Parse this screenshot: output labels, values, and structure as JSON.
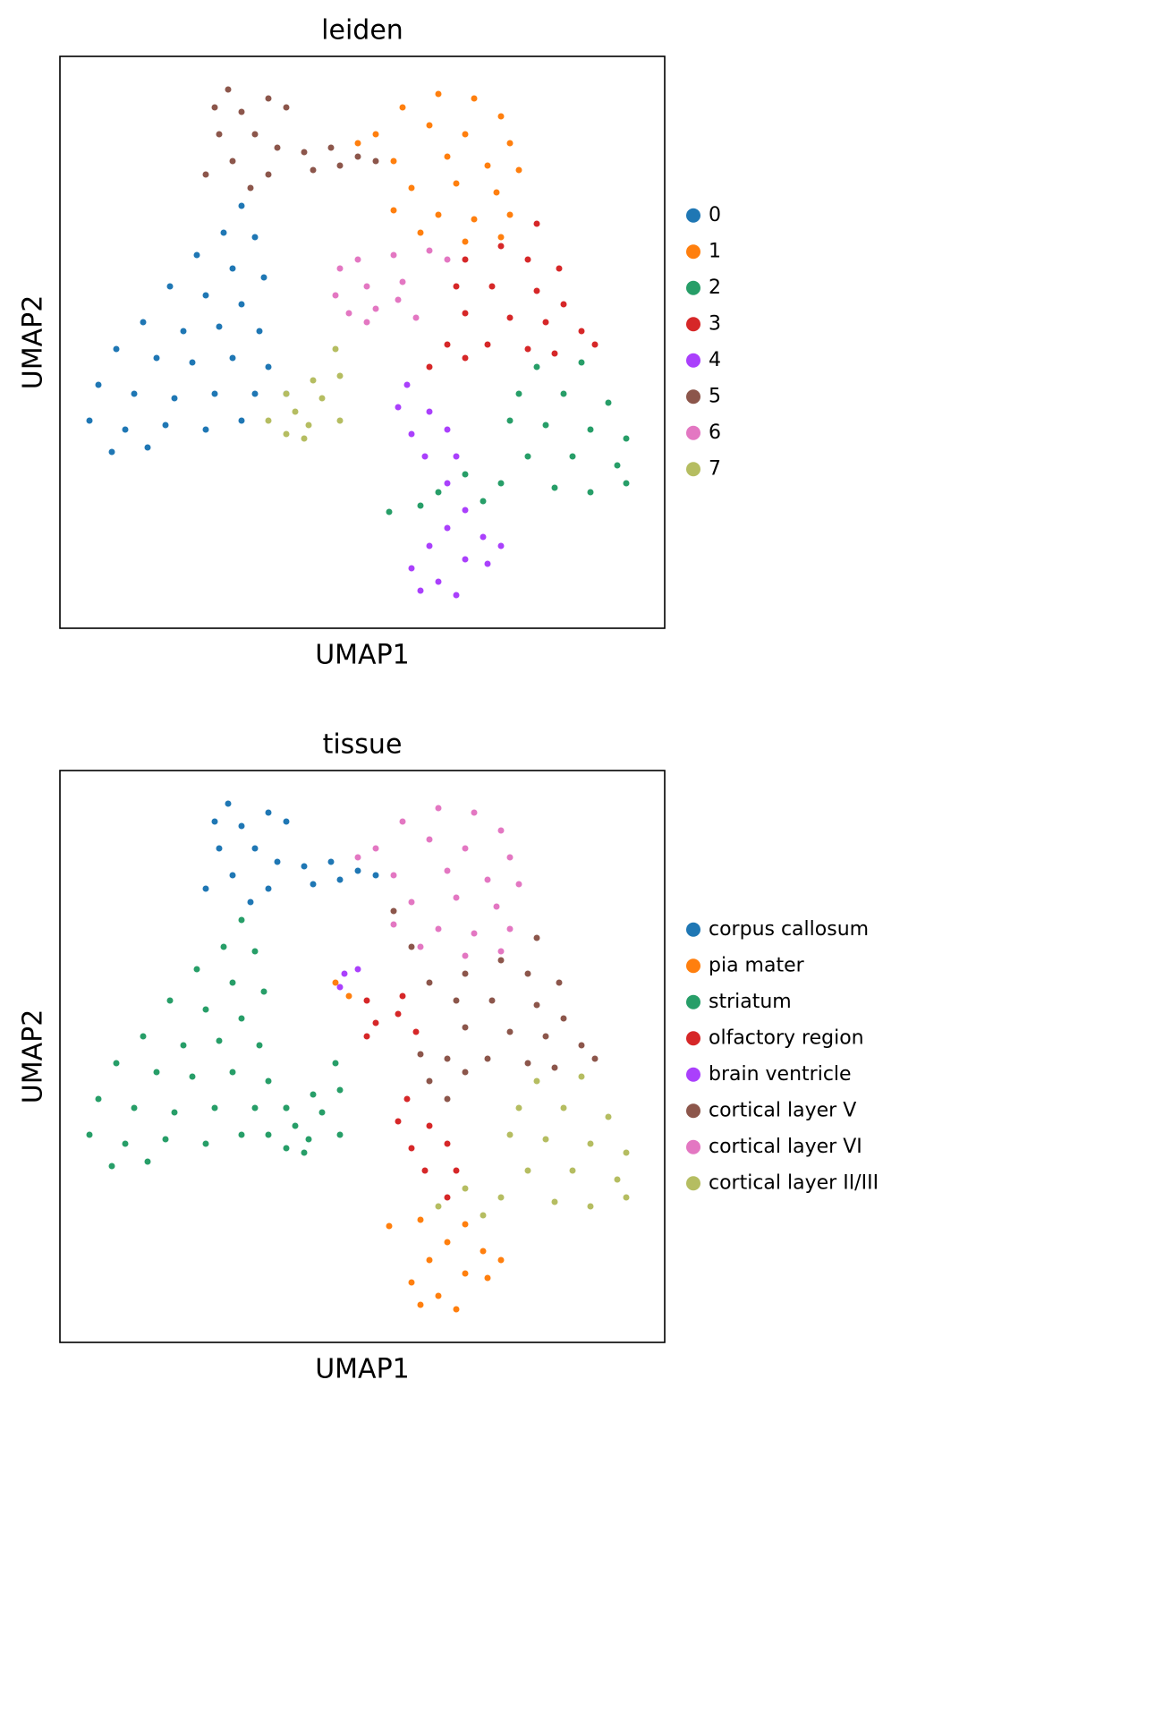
{
  "chart_data": [
    {
      "type": "scatter",
      "title": "leiden",
      "xlabel": "UMAP1",
      "ylabel": "UMAP2",
      "xlim": [
        0,
        13.52
      ],
      "ylim": [
        0,
        12.78
      ],
      "legend": "right",
      "series": [
        {
          "name": "0",
          "color": "#1f77b4",
          "x": [
            4.06,
            3.66,
            4.36,
            3.06,
            3.86,
            4.56,
            2.46,
            3.26,
            4.06,
            1.86,
            2.76,
            3.56,
            4.46,
            1.26,
            2.16,
            2.96,
            3.86,
            4.66,
            0.86,
            1.66,
            2.56,
            3.46,
            4.36,
            5.06,
            0.66,
            1.46,
            2.36,
            3.26,
            4.06,
            1.16,
            1.96
          ],
          "values": [
            9.44,
            8.84,
            8.74,
            8.34,
            8.04,
            7.84,
            7.64,
            7.44,
            7.24,
            6.84,
            6.64,
            6.74,
            6.64,
            6.24,
            6.04,
            5.94,
            6.04,
            5.84,
            5.44,
            5.24,
            5.14,
            5.24,
            5.24,
            5.24,
            4.64,
            4.44,
            4.54,
            4.44,
            4.64,
            3.94,
            4.04
          ]
        },
        {
          "name": "1",
          "color": "#ff7f0e",
          "x": [
            8.46,
            9.26,
            7.66,
            9.86,
            7.06,
            8.26,
            9.06,
            10.06,
            7.46,
            8.66,
            9.56,
            10.26,
            7.86,
            8.86,
            9.76,
            7.46,
            8.46,
            9.26,
            10.06,
            9.06,
            9.86,
            6.66,
            8.06
          ],
          "values": [
            11.94,
            11.84,
            11.64,
            11.44,
            11.04,
            11.24,
            11.04,
            10.84,
            10.44,
            10.54,
            10.34,
            10.24,
            9.84,
            9.94,
            9.74,
            9.34,
            9.24,
            9.14,
            9.24,
            8.64,
            8.74,
            10.84,
            8.84
          ]
        },
        {
          "name": "2",
          "color": "#279e68",
          "x": [
            10.66,
            11.66,
            10.26,
            11.26,
            12.26,
            10.06,
            10.86,
            11.86,
            12.66,
            10.46,
            11.46,
            12.46,
            12.66,
            9.86,
            11.06,
            11.86,
            9.06,
            8.46,
            9.46,
            8.06,
            7.36
          ],
          "values": [
            5.84,
            5.94,
            5.24,
            5.24,
            5.04,
            4.64,
            4.54,
            4.44,
            4.24,
            3.84,
            3.84,
            3.64,
            3.24,
            3.24,
            3.14,
            3.04,
            3.44,
            3.04,
            2.84,
            2.74,
            2.6
          ]
        },
        {
          "name": "3",
          "color": "#d62728",
          "x": [
            10.66,
            9.86,
            9.06,
            10.46,
            11.16,
            8.86,
            9.66,
            10.66,
            11.26,
            9.06,
            10.06,
            10.86,
            11.66,
            8.66,
            9.56,
            10.46,
            11.96,
            8.26,
            9.06,
            11.06
          ],
          "values": [
            9.04,
            8.54,
            8.24,
            8.24,
            8.04,
            7.64,
            7.64,
            7.54,
            7.24,
            7.04,
            6.94,
            6.84,
            6.64,
            6.34,
            6.34,
            6.24,
            6.34,
            5.84,
            6.04,
            6.14
          ]
        },
        {
          "name": "4",
          "color": "#aa40fc",
          "x": [
            7.76,
            7.56,
            8.26,
            7.86,
            8.66,
            8.16,
            8.86,
            8.66,
            9.06,
            8.66,
            9.46,
            9.86,
            8.26,
            9.06,
            7.86,
            9.56,
            8.46,
            8.86,
            8.06
          ],
          "values": [
            5.44,
            4.94,
            4.84,
            4.34,
            4.44,
            3.84,
            3.84,
            3.24,
            2.64,
            2.24,
            2.04,
            1.84,
            1.84,
            1.54,
            1.34,
            1.44,
            1.04,
            0.74,
            0.84
          ]
        },
        {
          "name": "5",
          "color": "#8c564b",
          "x": [
            3.76,
            3.46,
            4.06,
            4.66,
            5.06,
            3.56,
            4.36,
            4.86,
            5.46,
            6.06,
            6.66,
            7.06,
            3.86,
            4.66,
            5.66,
            4.26,
            3.26,
            6.26
          ],
          "values": [
            12.04,
            11.64,
            11.54,
            11.84,
            11.64,
            11.04,
            11.04,
            10.74,
            10.64,
            10.74,
            10.54,
            10.44,
            10.44,
            10.14,
            10.24,
            9.84,
            10.14,
            10.34
          ]
        },
        {
          "name": "6",
          "color": "#e377c2",
          "x": [
            6.26,
            6.66,
            7.46,
            8.26,
            8.66,
            6.16,
            6.86,
            7.66,
            6.46,
            7.06,
            7.56,
            7.96,
            6.86
          ],
          "values": [
            8.04,
            8.24,
            8.34,
            8.44,
            8.24,
            7.44,
            7.64,
            7.74,
            7.04,
            7.14,
            7.34,
            6.94,
            6.84
          ]
        },
        {
          "name": "7",
          "color": "#b5bd61",
          "x": [
            6.16,
            6.26,
            5.66,
            5.06,
            5.86,
            5.26,
            4.66,
            5.56,
            6.26,
            5.06,
            5.46
          ],
          "values": [
            6.24,
            5.64,
            5.54,
            5.24,
            5.14,
            4.84,
            4.64,
            4.54,
            4.64,
            4.34,
            4.24
          ]
        }
      ]
    },
    {
      "type": "scatter",
      "title": "tissue",
      "xlabel": "UMAP1",
      "ylabel": "UMAP2",
      "xlim": [
        0,
        13.52
      ],
      "ylim": [
        0,
        12.78
      ],
      "legend": "right",
      "series": [
        {
          "name": "corpus callosum",
          "color": "#1f77b4",
          "x": [
            3.76,
            3.46,
            4.06,
            4.66,
            5.06,
            3.56,
            4.36,
            4.86,
            5.46,
            6.06,
            6.66,
            7.06,
            3.86,
            4.66,
            5.66,
            4.26,
            3.26,
            6.26
          ],
          "values": [
            12.04,
            11.64,
            11.54,
            11.84,
            11.64,
            11.04,
            11.04,
            10.74,
            10.64,
            10.74,
            10.54,
            10.44,
            10.44,
            10.14,
            10.24,
            9.84,
            10.14,
            10.34
          ]
        },
        {
          "name": "pia mater",
          "color": "#ff7f0e",
          "x": [
            9.06,
            8.66,
            9.46,
            9.86,
            8.26,
            9.06,
            7.86,
            9.56,
            8.46,
            8.86,
            8.06,
            7.36,
            8.06,
            6.16,
            6.46
          ],
          "values": [
            2.64,
            2.24,
            2.04,
            1.84,
            1.84,
            1.54,
            1.34,
            1.44,
            1.04,
            0.74,
            0.84,
            2.6,
            2.74,
            8.04,
            7.74
          ]
        },
        {
          "name": "striatum",
          "color": "#279e68",
          "x": [
            4.06,
            3.66,
            4.36,
            3.06,
            3.86,
            4.56,
            2.46,
            3.26,
            4.06,
            1.86,
            2.76,
            3.56,
            4.46,
            1.26,
            2.16,
            2.96,
            3.86,
            4.66,
            0.86,
            1.66,
            2.56,
            3.46,
            4.36,
            5.06,
            0.66,
            1.46,
            2.36,
            3.26,
            4.06,
            1.16,
            1.96,
            6.16,
            6.26,
            5.66,
            5.06,
            5.86,
            5.26,
            4.66,
            5.56,
            6.26,
            5.06,
            5.46
          ],
          "values": [
            9.44,
            8.84,
            8.74,
            8.34,
            8.04,
            7.84,
            7.64,
            7.44,
            7.24,
            6.84,
            6.64,
            6.74,
            6.64,
            6.24,
            6.04,
            5.94,
            6.04,
            5.84,
            5.44,
            5.24,
            5.14,
            5.24,
            5.24,
            5.24,
            4.64,
            4.44,
            4.54,
            4.44,
            4.64,
            3.94,
            4.04,
            6.24,
            5.64,
            5.54,
            5.24,
            5.14,
            4.84,
            4.64,
            4.54,
            4.64,
            4.34,
            4.24
          ]
        },
        {
          "name": "olfactory region",
          "color": "#d62728",
          "x": [
            6.86,
            7.66,
            7.06,
            7.56,
            7.96,
            6.86,
            7.76,
            7.56,
            8.26,
            7.86,
            8.66,
            8.16,
            8.86,
            8.66
          ],
          "values": [
            7.64,
            7.74,
            7.14,
            7.34,
            6.94,
            6.84,
            5.44,
            4.94,
            4.84,
            4.34,
            4.44,
            3.84,
            3.84,
            3.24
          ]
        },
        {
          "name": "brain ventricle",
          "color": "#aa40fc",
          "x": [
            6.36,
            6.66,
            6.26
          ],
          "values": [
            8.24,
            8.34,
            7.94
          ]
        },
        {
          "name": "cortical layer V",
          "color": "#8c564b",
          "x": [
            10.66,
            9.86,
            9.06,
            10.46,
            11.16,
            8.86,
            9.66,
            10.66,
            11.26,
            9.06,
            10.06,
            10.86,
            11.66,
            8.66,
            9.56,
            10.46,
            11.96,
            8.26,
            9.06,
            11.06,
            7.46,
            7.86,
            8.26,
            8.06,
            8.66
          ],
          "values": [
            9.04,
            8.54,
            8.24,
            8.24,
            8.04,
            7.64,
            7.64,
            7.54,
            7.24,
            7.04,
            6.94,
            6.84,
            6.64,
            6.34,
            6.34,
            6.24,
            6.34,
            5.84,
            6.04,
            6.14,
            9.64,
            8.84,
            8.04,
            6.44,
            5.44
          ]
        },
        {
          "name": "cortical layer VI",
          "color": "#e377c2",
          "x": [
            8.46,
            9.26,
            7.66,
            9.86,
            7.06,
            8.26,
            9.06,
            10.06,
            7.46,
            8.66,
            9.56,
            10.26,
            7.86,
            8.86,
            9.76,
            7.46,
            8.46,
            9.26,
            10.06,
            9.06,
            9.86,
            6.66,
            8.06
          ],
          "values": [
            11.94,
            11.84,
            11.64,
            11.44,
            11.04,
            11.24,
            11.04,
            10.84,
            10.44,
            10.54,
            10.34,
            10.24,
            9.84,
            9.94,
            9.74,
            9.34,
            9.24,
            9.14,
            9.24,
            8.64,
            8.74,
            10.84,
            8.84
          ]
        },
        {
          "name": "cortical layer II/III",
          "color": "#b5bd61",
          "x": [
            10.66,
            11.66,
            10.26,
            11.26,
            12.26,
            10.06,
            10.86,
            11.86,
            12.66,
            10.46,
            11.46,
            12.46,
            12.66,
            9.86,
            11.06,
            11.86,
            9.06,
            8.46,
            9.46
          ],
          "values": [
            5.84,
            5.94,
            5.24,
            5.24,
            5.04,
            4.64,
            4.54,
            4.44,
            4.24,
            3.84,
            3.84,
            3.64,
            3.24,
            3.24,
            3.14,
            3.04,
            3.44,
            3.04,
            2.84
          ]
        }
      ]
    }
  ]
}
